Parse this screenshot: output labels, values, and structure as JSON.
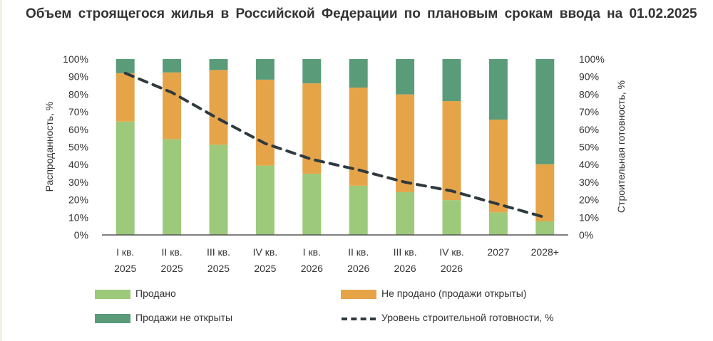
{
  "title": "Объем строящегося жилья в Российской Федерации по плановым срокам ввода на 01.02.2025",
  "chart_data": {
    "type": "bar",
    "stacked": true,
    "title": "Объем строящегося жилья в Российской Федерации по плановым срокам ввода на 01.02.2025",
    "categories": [
      [
        "I кв.",
        "2025"
      ],
      [
        "II кв.",
        "2025"
      ],
      [
        "III кв.",
        "2025"
      ],
      [
        "IV кв.",
        "2025"
      ],
      [
        "I кв.",
        "2026"
      ],
      [
        "II кв.",
        "2026"
      ],
      [
        "III кв.",
        "2026"
      ],
      [
        "IV кв.",
        "2026"
      ],
      [
        "2027",
        ""
      ],
      [
        "2028+",
        ""
      ]
    ],
    "series": [
      {
        "name": "Продано",
        "type": "bar",
        "color": "#9dc97a",
        "values": [
          64.5,
          54.5,
          51.3,
          39.4,
          34.8,
          28.0,
          24.3,
          19.8,
          12.8,
          7.7
        ]
      },
      {
        "name": "Не продано (продажи открыты)",
        "type": "bar",
        "color": "#e6a449",
        "values": [
          27.5,
          37.9,
          42.5,
          48.9,
          51.4,
          55.8,
          55.6,
          56.3,
          52.8,
          32.5
        ]
      },
      {
        "name": "Продажи не открыты",
        "type": "bar",
        "color": "#5a9c79",
        "values": [
          8.0,
          7.6,
          6.2,
          11.7,
          13.8,
          16.2,
          20.1,
          23.9,
          34.4,
          59.8
        ]
      },
      {
        "name": "Уровень строительной готовности, %",
        "type": "line",
        "axis": "right",
        "color": "#2f3a3f",
        "style": "dashed",
        "values": [
          92,
          81,
          66,
          52,
          43,
          37,
          30,
          25,
          17.5,
          10
        ]
      }
    ],
    "ylabel": "Распроданность, %",
    "ylabel_right": "Строительная готовность, %",
    "ylim": [
      0,
      100
    ],
    "ylim_right": [
      0,
      100
    ],
    "yticks": [
      "0%",
      "10%",
      "20%",
      "30%",
      "40%",
      "50%",
      "60%",
      "70%",
      "80%",
      "90%",
      "100%"
    ],
    "grid": false,
    "legend_position": "bottom"
  }
}
